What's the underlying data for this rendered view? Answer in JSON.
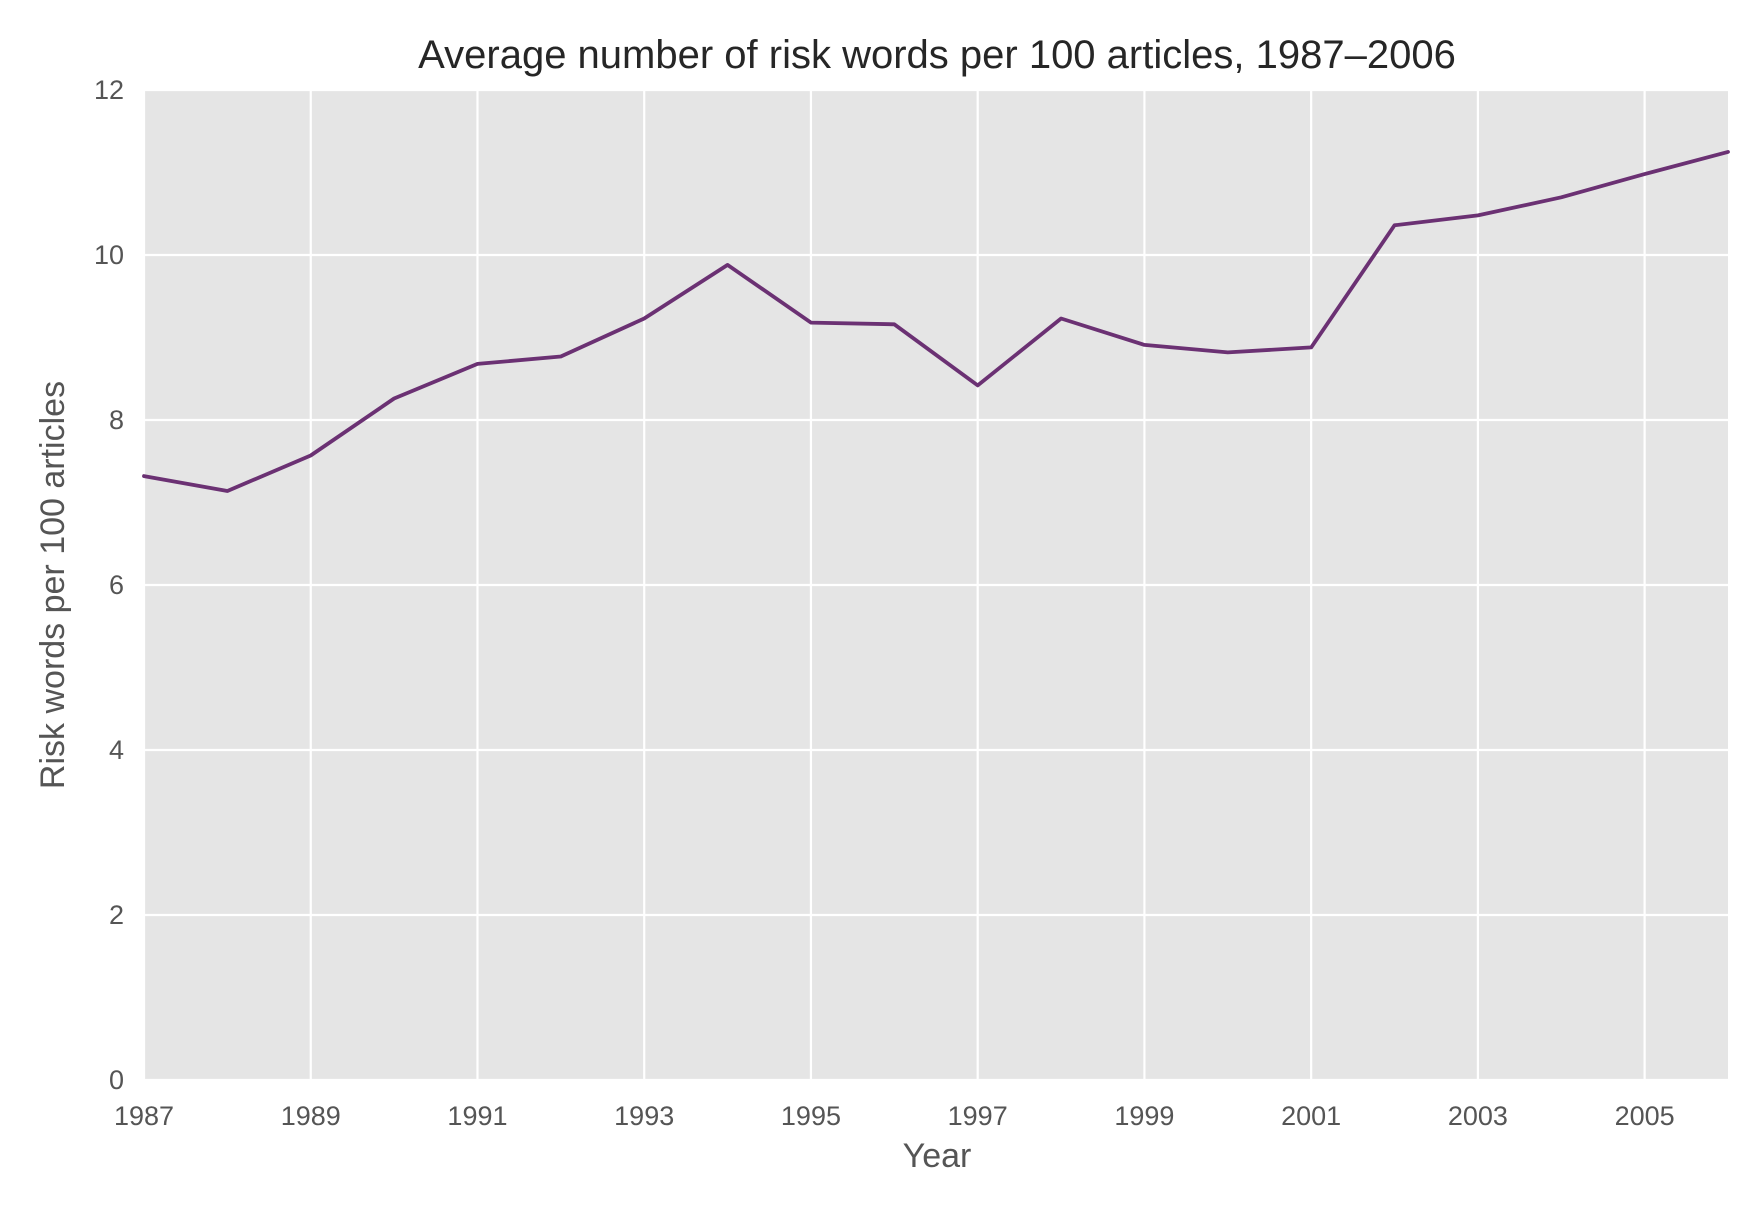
{
  "chart_data": {
    "type": "line",
    "title": "Average number of risk words per 100 articles, 1987–2006",
    "xlabel": "Year",
    "ylabel": "Risk words per 100 articles",
    "x": [
      1987,
      1988,
      1989,
      1990,
      1991,
      1992,
      1993,
      1994,
      1995,
      1996,
      1997,
      1998,
      1999,
      2000,
      2001,
      2002,
      2003,
      2004,
      2005,
      2006
    ],
    "series": [
      {
        "values": [
          7.32,
          7.14,
          7.57,
          8.26,
          8.68,
          8.77,
          9.23,
          9.88,
          9.18,
          9.16,
          8.42,
          9.23,
          8.91,
          8.82,
          8.88,
          10.36,
          10.48,
          10.7,
          10.98,
          11.25
        ],
        "color": "#6b3173"
      }
    ],
    "xlim": [
      1987,
      2006
    ],
    "ylim": [
      0,
      12
    ],
    "xticks": [
      "1987",
      "1989",
      "1991",
      "1993",
      "1995",
      "1997",
      "1999",
      "2001",
      "2003",
      "2005"
    ],
    "yticks": [
      "0",
      "2",
      "4",
      "6",
      "8",
      "10",
      "12"
    ],
    "grid": true,
    "legend": "none",
    "background_color": "#e5e5e5"
  }
}
